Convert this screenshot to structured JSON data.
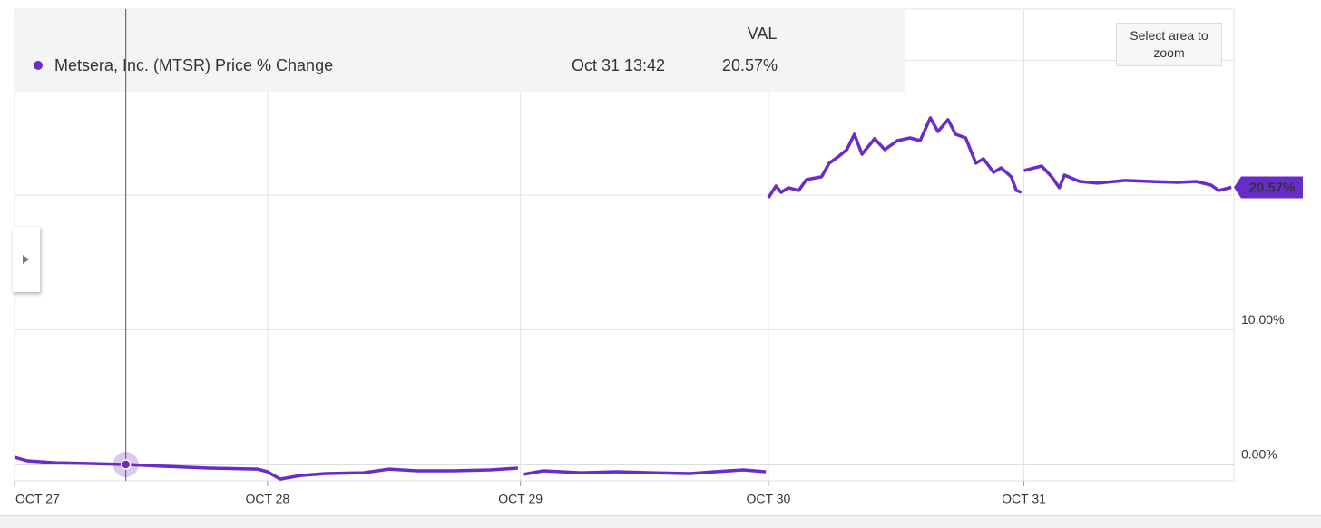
{
  "chart_data": {
    "type": "line",
    "tooltip": {
      "header": "VAL",
      "time": "Oct 31 13:42",
      "value": "20.57%"
    },
    "zoom_hint": "Select area to zoom",
    "crosshair_x": 0.44,
    "xlim": [
      0,
      4.82
    ],
    "xticks": [
      {
        "value": 0,
        "label": "OCT 27"
      },
      {
        "value": 1,
        "label": "OCT 28"
      },
      {
        "value": 2,
        "label": "OCT 29"
      },
      {
        "value": 2.98,
        "label": "OCT 30"
      },
      {
        "value": 3.99,
        "label": "OCT 31"
      }
    ],
    "ylim": [
      -1.21,
      33.8
    ],
    "yticks": [
      {
        "value": 0,
        "label": "0.00%"
      },
      {
        "value": 10,
        "label": "10.00%"
      },
      {
        "value": 20
      },
      {
        "value": 30
      }
    ],
    "grid": true,
    "x": [
      0.0,
      0.05,
      0.16,
      0.3,
      0.44,
      0.59,
      0.77,
      0.96,
      1.0,
      1.05,
      1.13,
      1.23,
      1.38,
      1.48,
      1.59,
      1.73,
      1.88,
      1.99,
      null,
      2.01,
      2.09,
      2.24,
      2.38,
      2.52,
      2.67,
      2.77,
      2.88,
      2.97,
      null,
      2.98,
      3.01,
      3.03,
      3.06,
      3.1,
      3.13,
      3.19,
      3.22,
      3.26,
      3.29,
      3.32,
      3.35,
      3.4,
      3.44,
      3.49,
      3.54,
      3.58,
      3.62,
      3.65,
      3.69,
      3.72,
      3.76,
      3.8,
      3.83,
      3.87,
      3.9,
      3.94,
      3.96,
      3.98,
      null,
      3.99,
      4.06,
      4.1,
      4.13,
      4.15,
      4.21,
      4.28,
      4.39,
      4.49,
      4.6,
      4.67,
      4.73,
      4.76,
      4.81
    ],
    "series": [
      {
        "name": "Metsera, Inc. (MTSR) Price % Change",
        "color": "#6a2cc8",
        "values": [
          0.54,
          0.27,
          0.13,
          0.07,
          0.0,
          -0.13,
          -0.27,
          -0.34,
          -0.54,
          -1.08,
          -0.81,
          -0.67,
          -0.61,
          -0.34,
          -0.47,
          -0.47,
          -0.4,
          -0.27,
          null,
          -0.74,
          -0.47,
          -0.61,
          -0.54,
          -0.61,
          -0.67,
          -0.54,
          -0.4,
          -0.54,
          null,
          19.8,
          20.67,
          20.2,
          20.54,
          20.34,
          21.14,
          21.35,
          22.36,
          22.9,
          23.37,
          24.51,
          23.03,
          24.18,
          23.37,
          24.04,
          24.24,
          24.04,
          25.72,
          24.71,
          25.59,
          24.51,
          24.24,
          22.36,
          22.69,
          21.68,
          22.02,
          21.35,
          20.34,
          20.2,
          null,
          21.82,
          22.15,
          21.35,
          20.54,
          21.48,
          21.01,
          20.88,
          21.08,
          21.01,
          20.94,
          21.01,
          20.74,
          20.34,
          20.57
        ],
        "end_label": "20.57%"
      }
    ]
  }
}
